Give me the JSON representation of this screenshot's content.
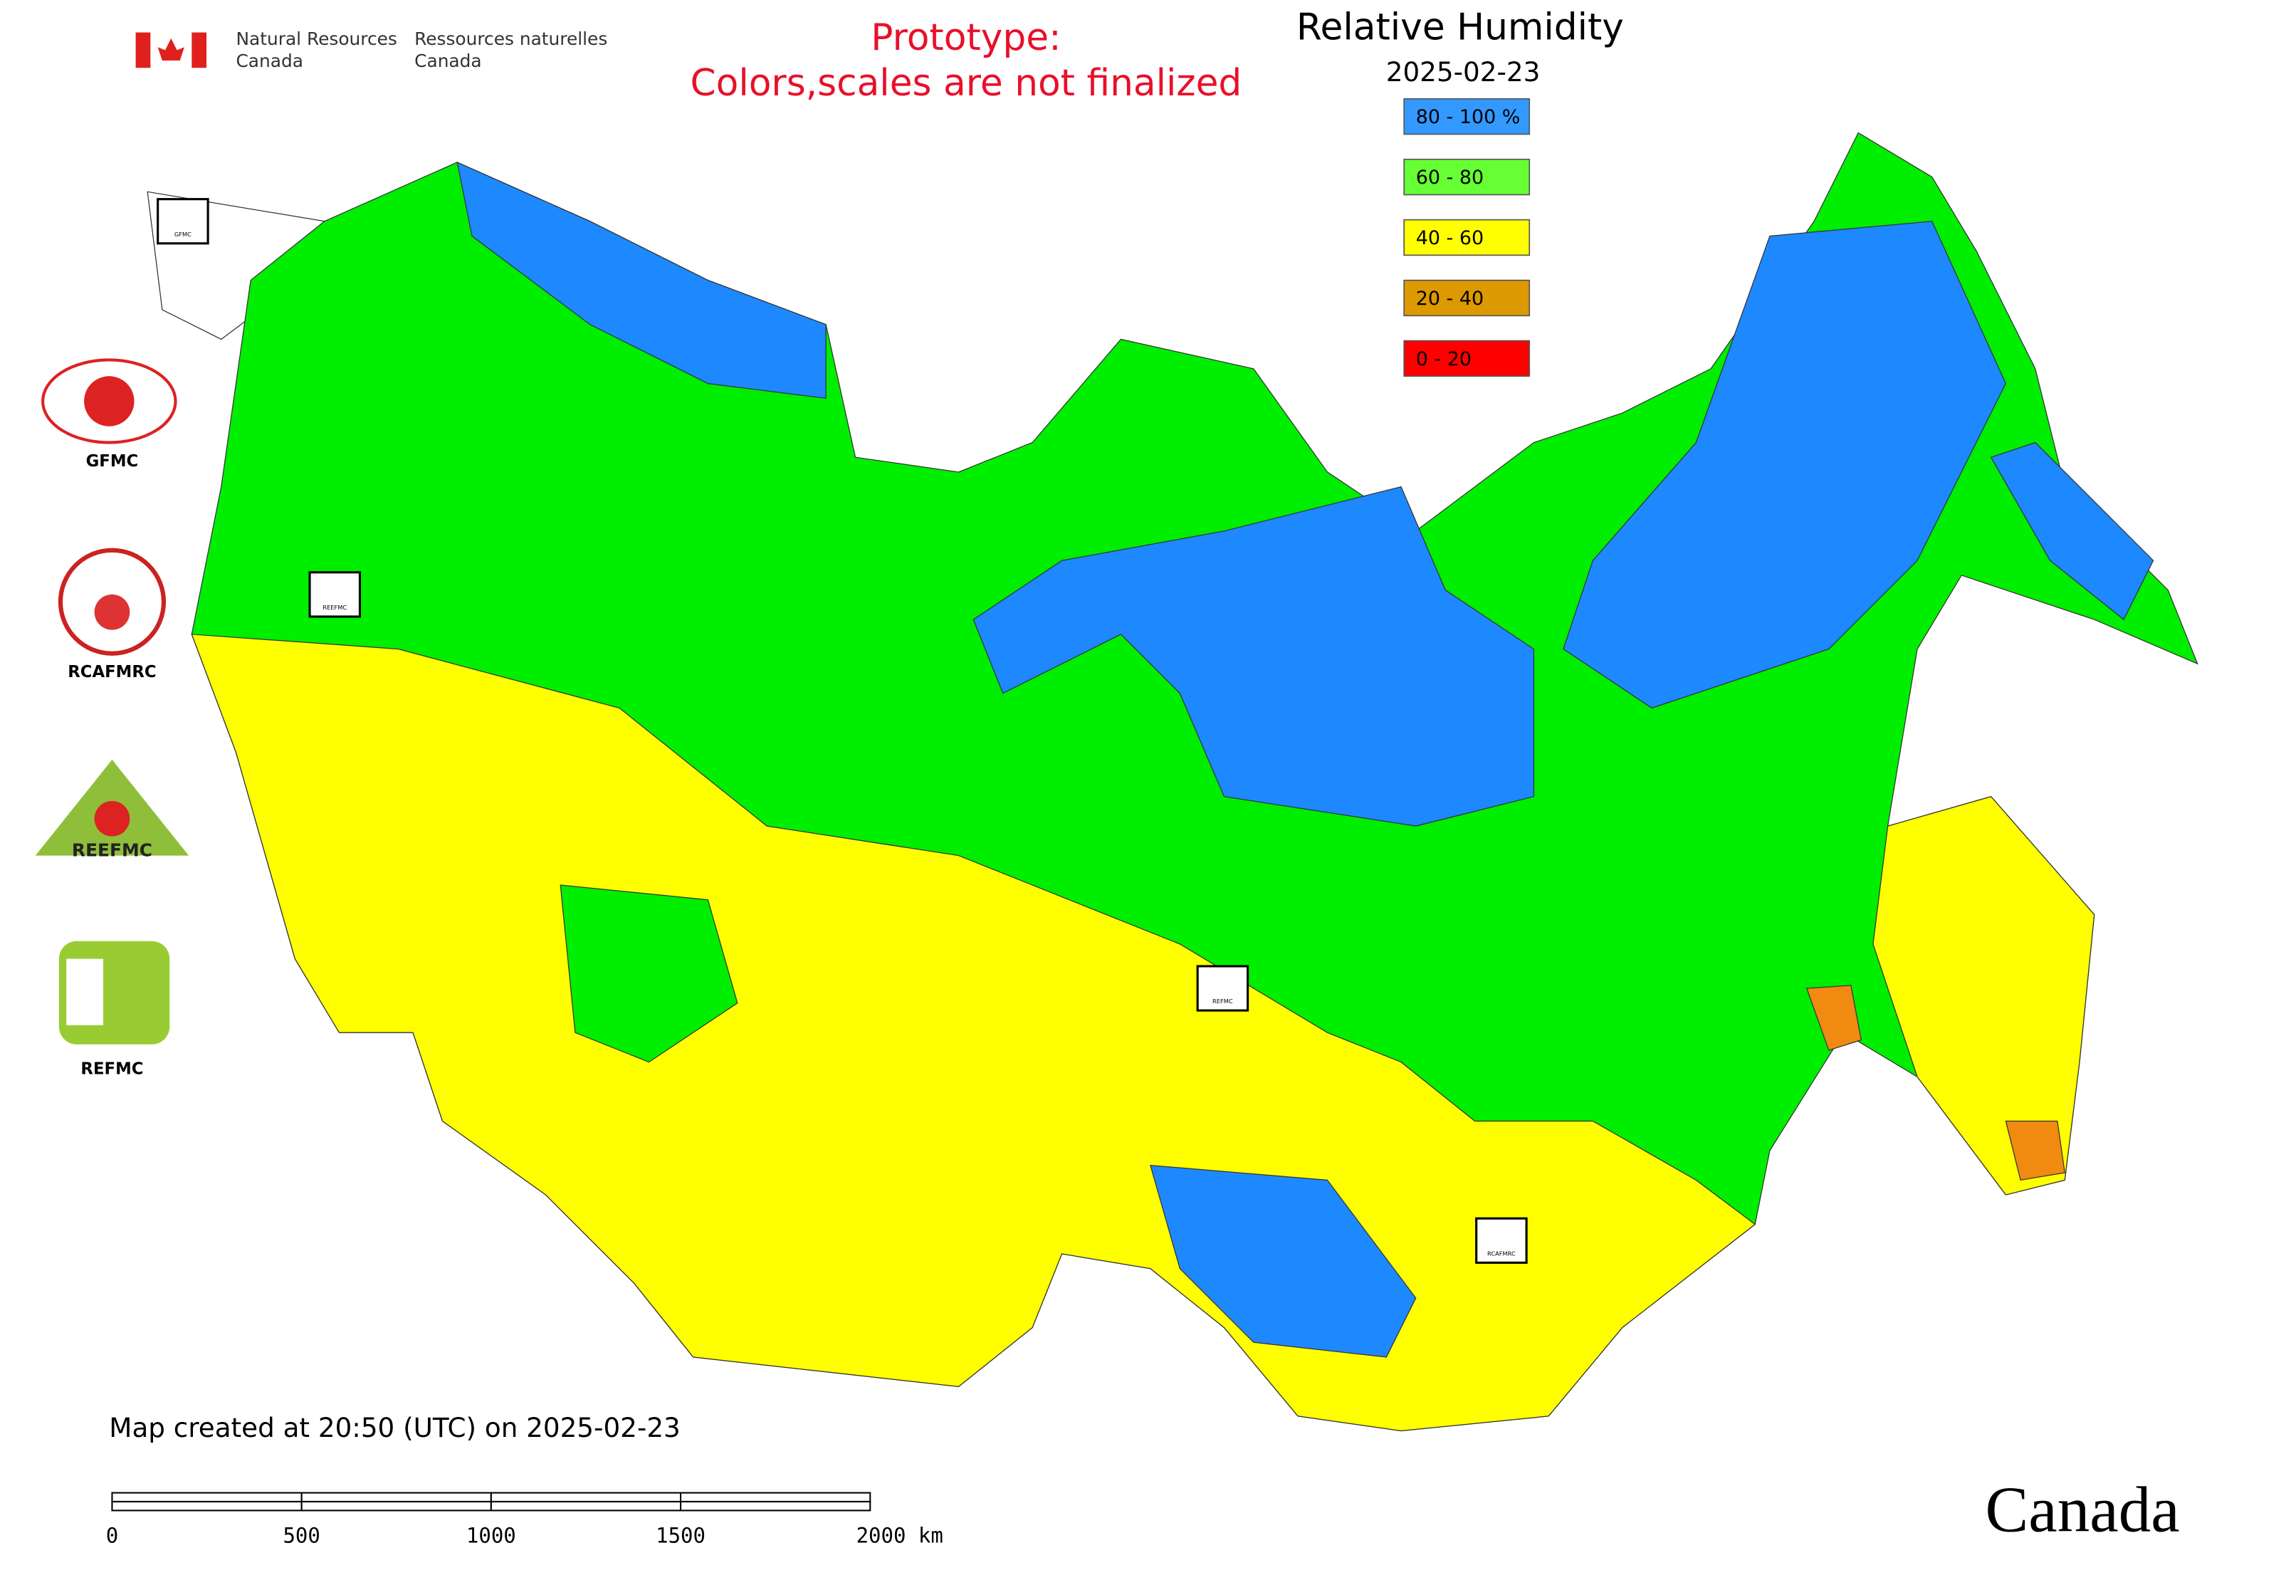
{
  "header": {
    "en_line1": "Natural Resources",
    "en_line2": "Canada",
    "fr_line1": "Ressources naturelles",
    "fr_line2": "Canada"
  },
  "notice": {
    "line1": "Prototype:",
    "line2": "Colors,scales are not finalized"
  },
  "title": "Relative Humidity",
  "date": "2025-02-23",
  "legend": [
    {
      "label": "80 - 100 %",
      "color": "#3399ff"
    },
    {
      "label": "60 - 80",
      "color": "#66ff33"
    },
    {
      "label": "40 - 60",
      "color": "#ffff00"
    },
    {
      "label": "20 - 40",
      "color": "#dd9900"
    },
    {
      "label": "0 - 20",
      "color": "#ff0000"
    }
  ],
  "logos": [
    "GFMC",
    "RCAFMRC",
    "REEFMC",
    "REFMC"
  ],
  "map_markers": [
    "GFMC",
    "REEFMC",
    "REFMC",
    "RCAFMRC"
  ],
  "footer": "Map created at 20:50 (UTC) on 2025-02-23",
  "scale_bar": [
    "0",
    "500",
    "1000",
    "1500",
    "2000 km"
  ],
  "wordmark": "Canada"
}
